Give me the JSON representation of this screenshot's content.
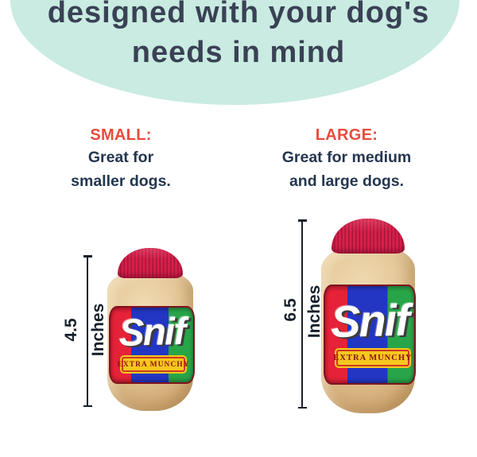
{
  "header": {
    "line1": "designed with your dog's",
    "line2": "needs in mind"
  },
  "small": {
    "title": "SMALL:",
    "desc1": "Great for",
    "desc2": "smaller dogs.",
    "measure": "4.5",
    "unit": "Inches"
  },
  "large": {
    "title": "LARGE:",
    "desc1": "Great for medium",
    "desc2": "and large dogs.",
    "measure": "6.5",
    "unit": "Inches"
  },
  "product": {
    "brand": "Snif",
    "tagline": "EXTRA MUNCHY"
  },
  "colors": {
    "banner_bg": "#c9ebe1",
    "banner_text": "#3a4155",
    "size_title_red": "#e94b3c",
    "body_text_navy": "#24364f",
    "lid_red": "#d6204a",
    "label_red": "#e52238",
    "label_blue": "#2336c3",
    "label_green": "#28a548",
    "badge_yellow": "#f6c71f",
    "badge_text": "#8c150d",
    "plush_tan": "#e2c392",
    "measure_line": "#15202b"
  }
}
